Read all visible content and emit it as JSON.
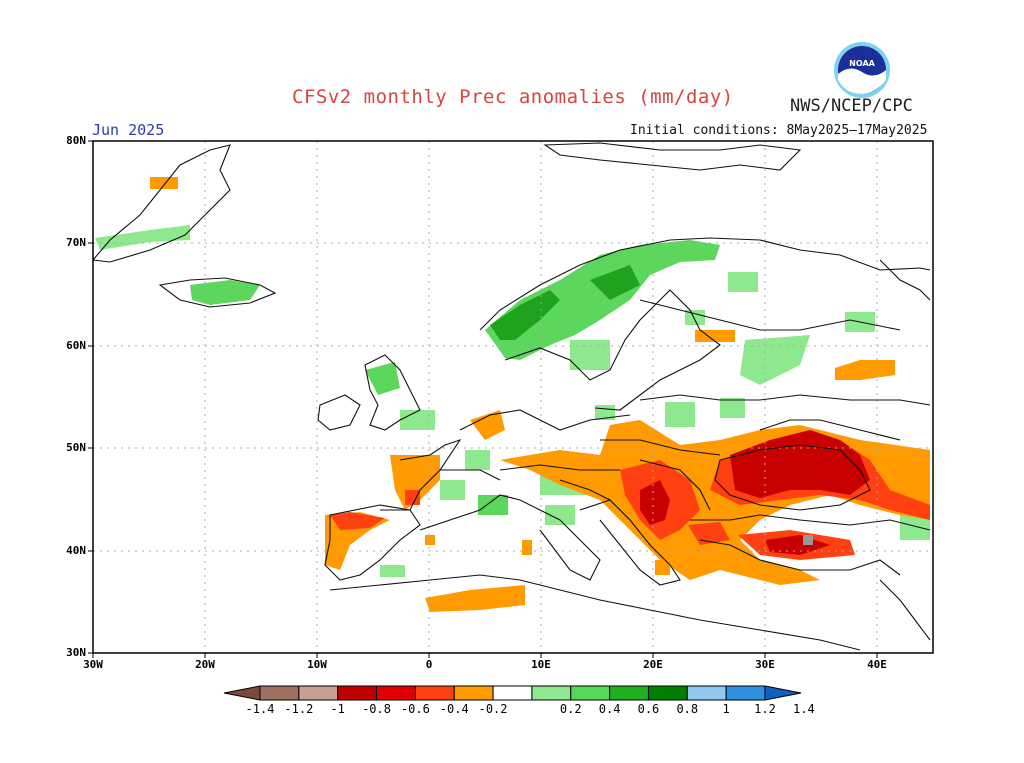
{
  "header": {
    "title": "CFSv2 monthly Prec anomalies (mm/day)",
    "organization": "NWS/NCEP/CPC",
    "month": "Jun 2025",
    "initial_conditions": "Initial conditions: 8May2025–17May2025"
  },
  "logo": {
    "icon": "noaa-logo-icon",
    "text": "NOAA"
  },
  "map": {
    "lat_labels": [
      "80N",
      "70N",
      "60N",
      "50N",
      "40N",
      "30N"
    ],
    "lon_labels": [
      "30W",
      "20W",
      "10W",
      "0",
      "10E",
      "20E",
      "30E",
      "40E"
    ]
  },
  "colorbar": {
    "labels": [
      "-1.4",
      "-1.2",
      "-1",
      "-0.8",
      "-0.6",
      "-0.4",
      "-0.2",
      "0.2",
      "0.4",
      "0.6",
      "0.8",
      "1",
      "1.2",
      "1.4"
    ],
    "colors": [
      "#7a4a3a",
      "#a07060",
      "#c8a090",
      "#c00000",
      "#e00000",
      "#ff4010",
      "#ff9a00",
      "#ffffff",
      "#90e890",
      "#58d858",
      "#20b020",
      "#008000",
      "#90c8f0",
      "#3090e0",
      "#1060c0"
    ]
  }
}
